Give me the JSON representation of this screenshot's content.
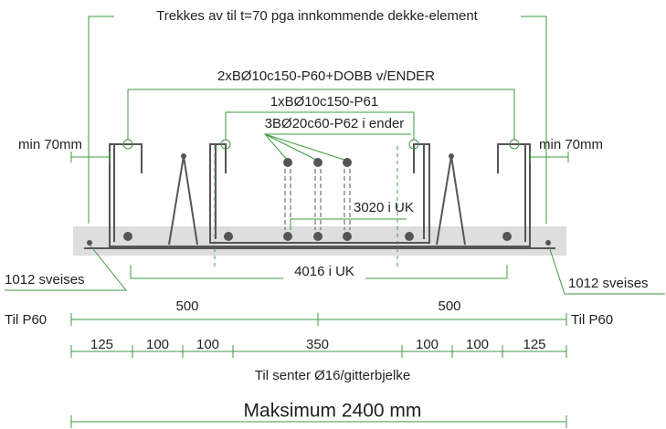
{
  "header": {
    "title": "Trekkes av til t=70 pga innkommende dekke-element"
  },
  "labels": {
    "top_rebar": "2xBØ10c150-P60+DOBB v/ENDER",
    "mid_rebar": "1xBØ10c150-P61",
    "end_rebar": "3BØ20c60-P62 i ender",
    "min_left": "min 70mm",
    "min_right": "min 70mm",
    "uk_3020": "3020 i UK",
    "uk_4016": "4016 i UK",
    "weld_left": "1012 sveises",
    "weld_right": "1012 sveises",
    "til_left": "Til P60",
    "til_right": "Til P60"
  },
  "dimensions": {
    "halves": [
      500,
      500
    ],
    "segments": [
      125,
      100,
      100,
      350,
      100,
      100,
      125
    ],
    "segments_caption": "Til senter Ø16/gitterbjelke",
    "total": "Maksimum 2400 mm"
  }
}
